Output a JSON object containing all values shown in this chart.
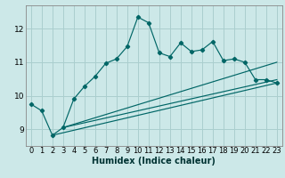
{
  "xlabel": "Humidex (Indice chaleur)",
  "bg_color": "#cce8e8",
  "grid_color": "#aacece",
  "line_color": "#006666",
  "xlim": [
    -0.5,
    23.5
  ],
  "ylim": [
    8.5,
    12.7
  ],
  "xticks": [
    0,
    1,
    2,
    3,
    4,
    5,
    6,
    7,
    8,
    9,
    10,
    11,
    12,
    13,
    14,
    15,
    16,
    17,
    18,
    19,
    20,
    21,
    22,
    23
  ],
  "yticks": [
    9,
    10,
    11,
    12
  ],
  "main_x": [
    0,
    1,
    2,
    3,
    4,
    5,
    6,
    7,
    8,
    9,
    10,
    11,
    12,
    13,
    14,
    15,
    16,
    17,
    18,
    19,
    20,
    21,
    22,
    23
  ],
  "main_y": [
    9.75,
    9.55,
    8.82,
    9.05,
    9.9,
    10.28,
    10.58,
    10.97,
    11.1,
    11.47,
    12.35,
    12.18,
    11.28,
    11.17,
    11.58,
    11.32,
    11.37,
    11.62,
    11.05,
    11.1,
    11.0,
    10.48,
    10.48,
    10.38
  ],
  "trend1_x": [
    2,
    23
  ],
  "trend1_y": [
    8.82,
    10.38
  ],
  "trend2_x": [
    3,
    23
  ],
  "trend2_y": [
    9.05,
    10.48
  ],
  "trend3_x": [
    3,
    23
  ],
  "trend3_y": [
    9.05,
    11.0
  ]
}
